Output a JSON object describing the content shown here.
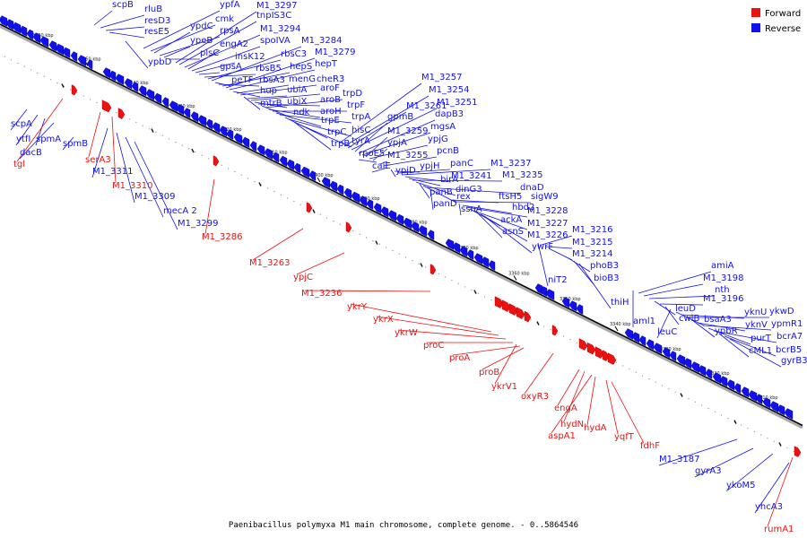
{
  "colors": {
    "forward": "#ee1111",
    "reverse": "#1111ee",
    "axis": "#000000",
    "shadow": "#aaaaaa"
  },
  "legend": [
    {
      "label": "Forward",
      "color": "#ee1111"
    },
    {
      "label": "Reverse",
      "color": "#1111ee"
    }
  ],
  "caption": "Paenibacillus polymyxa M1 main chromosome, complete genome. - 0..5864546",
  "axis_ticks": [
    "3460 kbp",
    "3450 kbp",
    "3440 kbp",
    "3430 kbp",
    "3420 kbp",
    "3410 kbp",
    "3400 kbp",
    "3390 kbp",
    "3380 kbp",
    "3370 kbp",
    "3360 kbp",
    "3350 kbp",
    "3340 kbp",
    "3330 kbp",
    "3320 kbp",
    "3310 kbp"
  ],
  "reverse_genes": [
    {
      "label": "scpB"
    },
    {
      "label": "rluB"
    },
    {
      "label": "resD3"
    },
    {
      "label": "resE5"
    },
    {
      "label": "ypbD"
    },
    {
      "label": "ypfA"
    },
    {
      "label": "cmk"
    },
    {
      "label": "ypdC"
    },
    {
      "label": "rpsA"
    },
    {
      "label": "ypeB"
    },
    {
      "label": "plsC"
    },
    {
      "label": "M1_3297"
    },
    {
      "label": "tnpIS3C"
    },
    {
      "label": "M1_3294"
    },
    {
      "label": "engA2"
    },
    {
      "label": "spoIVA"
    },
    {
      "label": "insK12"
    },
    {
      "label": "gpsA"
    },
    {
      "label": "rbsB5"
    },
    {
      "label": "rbsC3"
    },
    {
      "label": "M1_3284"
    },
    {
      "label": "peTF"
    },
    {
      "label": "rbsA3"
    },
    {
      "label": "hepS"
    },
    {
      "label": "M1_3279"
    },
    {
      "label": "hepT"
    },
    {
      "label": "hup"
    },
    {
      "label": "menG"
    },
    {
      "label": "cheR3"
    },
    {
      "label": "mtrB"
    },
    {
      "label": "ubiA"
    },
    {
      "label": "aroF"
    },
    {
      "label": "ubiX"
    },
    {
      "label": "aroB"
    },
    {
      "label": "ndk"
    },
    {
      "label": "trpD"
    },
    {
      "label": "aroH"
    },
    {
      "label": "trpF"
    },
    {
      "label": "trpE"
    },
    {
      "label": "trpA"
    },
    {
      "label": "trpC"
    },
    {
      "label": "hisC"
    },
    {
      "label": "trpB"
    },
    {
      "label": "tyrA"
    },
    {
      "label": "M1_3257"
    },
    {
      "label": "M1_3254"
    },
    {
      "label": "M1_3261"
    },
    {
      "label": "M1_3251"
    },
    {
      "label": "gpmB"
    },
    {
      "label": "dapB3"
    },
    {
      "label": "mgsA"
    },
    {
      "label": "M1_3259"
    },
    {
      "label": "ypjG"
    },
    {
      "label": "ypjA"
    },
    {
      "label": "rpoE5"
    },
    {
      "label": "M1_3255"
    },
    {
      "label": "pcnB"
    },
    {
      "label": "caiE"
    },
    {
      "label": "ypjD"
    },
    {
      "label": "ypjH"
    },
    {
      "label": "panC"
    },
    {
      "label": "M1_3237"
    },
    {
      "label": "M1_3241"
    },
    {
      "label": "birA"
    },
    {
      "label": "M1_3235"
    },
    {
      "label": "dinG3"
    },
    {
      "label": "panB"
    },
    {
      "label": "rex"
    },
    {
      "label": "dnaD"
    },
    {
      "label": "panD"
    },
    {
      "label": "ftsH5"
    },
    {
      "label": "sigW9"
    },
    {
      "label": "ssnA"
    },
    {
      "label": "hbd2"
    },
    {
      "label": "M1_3228"
    },
    {
      "label": "ackA"
    },
    {
      "label": "M1_3227"
    },
    {
      "label": "asnS"
    },
    {
      "label": "M1_3226"
    },
    {
      "label": "ywrF"
    },
    {
      "label": "M1_3216"
    },
    {
      "label": "M1_3215"
    },
    {
      "label": "niT2"
    },
    {
      "label": "M1_3214"
    },
    {
      "label": "phoB3"
    },
    {
      "label": "bioB3"
    },
    {
      "label": "thiH"
    },
    {
      "label": "amiA"
    },
    {
      "label": "M1_3198"
    },
    {
      "label": "nth"
    },
    {
      "label": "leuD"
    },
    {
      "label": "M1_3196"
    },
    {
      "label": "aml1"
    },
    {
      "label": "cwlB"
    },
    {
      "label": "leuC"
    },
    {
      "label": "bsaA3"
    },
    {
      "label": "yknU"
    },
    {
      "label": "ykwD"
    },
    {
      "label": "ypbR"
    },
    {
      "label": "yknV"
    },
    {
      "label": "ypmR1"
    },
    {
      "label": "purT"
    },
    {
      "label": "bcrA7"
    },
    {
      "label": "cML1"
    },
    {
      "label": "bcrB5"
    },
    {
      "label": "gyrB3"
    },
    {
      "label": "scpA"
    },
    {
      "label": "ytfI"
    },
    {
      "label": "spmA"
    },
    {
      "label": "dacB"
    },
    {
      "label": "spmB"
    },
    {
      "label": "M1_3311"
    },
    {
      "label": "M1_3309"
    },
    {
      "label": "mecA 2"
    },
    {
      "label": "M1_3299"
    },
    {
      "label": "M1_3187"
    },
    {
      "label": "gyrA3"
    },
    {
      "label": "ykoM5"
    },
    {
      "label": "yhcA3"
    }
  ],
  "forward_genes": [
    {
      "label": "tgl"
    },
    {
      "label": "serA3"
    },
    {
      "label": "M1_3310"
    },
    {
      "label": "M1_3286"
    },
    {
      "label": "M1_3263"
    },
    {
      "label": "ypjC"
    },
    {
      "label": "M1_3236"
    },
    {
      "label": "ykrY"
    },
    {
      "label": "ykrX"
    },
    {
      "label": "ykrW"
    },
    {
      "label": "proC"
    },
    {
      "label": "proA"
    },
    {
      "label": "proB"
    },
    {
      "label": "ykrV1"
    },
    {
      "label": "oxyR3"
    },
    {
      "label": "engA"
    },
    {
      "label": "hydN"
    },
    {
      "label": "aspA1"
    },
    {
      "label": "hydA"
    },
    {
      "label": "yqfT"
    },
    {
      "label": "fdhF"
    },
    {
      "label": "rumA1"
    }
  ]
}
